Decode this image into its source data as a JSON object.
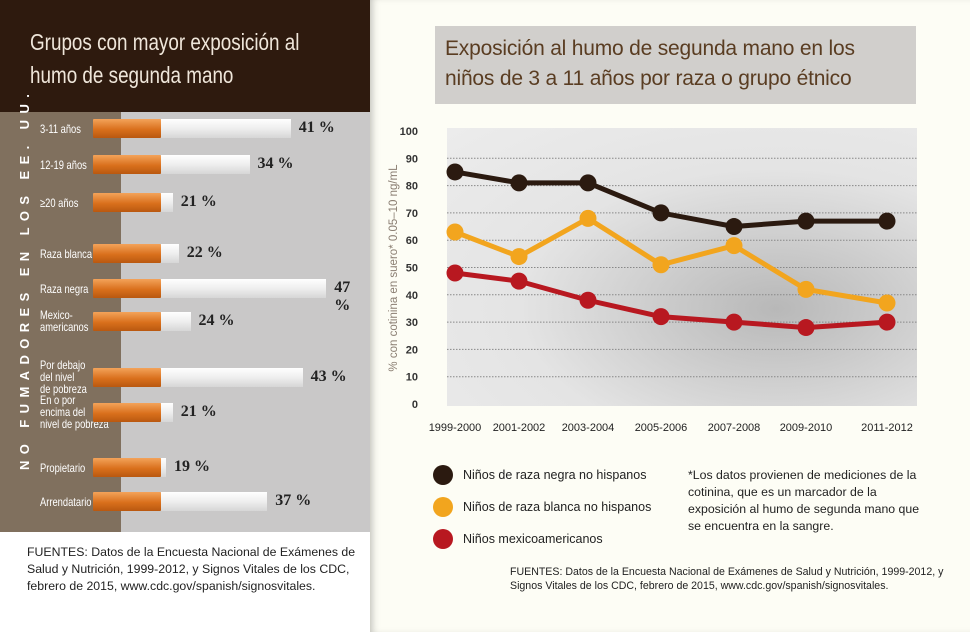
{
  "left_panel": {
    "title": "Grupos con mayor exposición al humo de segunda mano",
    "vertical_label": "NO FUMADORES EN LOS EE. UU.",
    "footnote": "FUENTES: Datos de la Encuesta Nacional de Exámenes de Salud y Nutrición, 1999-2012, y Signos Vitales de los CDC, febrero de 2015, www.cdc.gov/spanish/signosvitales."
  },
  "right_panel": {
    "title": "Exposición al humo de segunda mano en los niños de 3 a 11 años por raza o grupo étnico",
    "note": "*Los datos provienen de mediciones de la cotinina, que es un marcador de la exposición al humo de segunda mano que se encuentra en la sangre.",
    "footnote": "FUENTES: Datos de la Encuesta Nacional de Exámenes de Salud y Nutrición, 1999-2012, y Signos Vitales de los CDC, febrero de 2015, www.cdc.gov/spanish/signosvitales."
  },
  "chart_data": [
    {
      "type": "bar",
      "orientation": "horizontal",
      "categories": [
        "3-11 años",
        "12-19 años",
        "≥20 años",
        "Raza blanca",
        "Raza negra",
        "Mexico-\namericanos",
        "Por debajo\ndel nivel\nde pobreza",
        "En o por\nencima del\nnivel de pobreza",
        "Propietario",
        "Arrendatario"
      ],
      "values": [
        41,
        34,
        21,
        22,
        47,
        24,
        43,
        21,
        19,
        37
      ],
      "value_labels": [
        "41 %",
        "34 %",
        "21 %",
        "22 %",
        "47 %",
        "24 %",
        "43 %",
        "21 %",
        "19 %",
        "37 %"
      ],
      "colors": {
        "filter": "#d9701c",
        "paper": "#f2f2f2"
      }
    },
    {
      "type": "line",
      "x": [
        "1999-2000",
        "2001-2002",
        "2003-2004",
        "2005-2006",
        "2007-2008",
        "2009-2010",
        "2011-2012"
      ],
      "ylabel": "% con cotinina en suero* 0.05–10 ng/mL",
      "ylim": [
        0,
        100
      ],
      "yticks": [
        "0",
        "10",
        "20",
        "30",
        "40",
        "50",
        "60",
        "70",
        "80",
        "90",
        "100"
      ],
      "grid": true,
      "legend_position": "bottom-left",
      "series": [
        {
          "name": "Niños de raza negra no hispanos",
          "color": "#2b1a10",
          "values": [
            85,
            81,
            81,
            70,
            65,
            67,
            67
          ]
        },
        {
          "name": "Niños de raza blanca no hispanos",
          "color": "#f2a51e",
          "values": [
            63,
            54,
            68,
            51,
            58,
            42,
            37
          ]
        },
        {
          "name": "Niños mexicoamericanos",
          "color": "#b81820",
          "values": [
            48,
            45,
            38,
            32,
            30,
            28,
            30
          ]
        }
      ]
    }
  ]
}
